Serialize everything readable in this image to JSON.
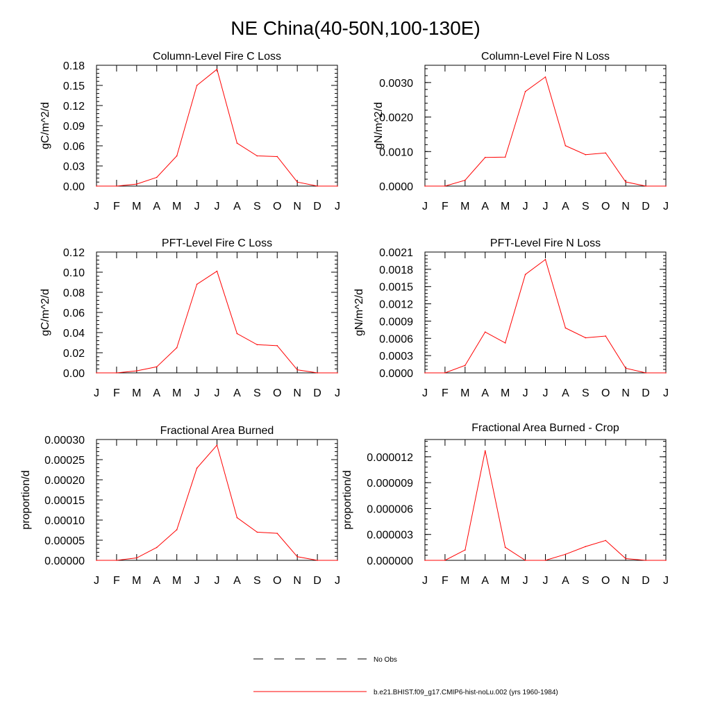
{
  "figure": {
    "title": "NE China(40-50N,100-130E)",
    "legend": [
      {
        "label": "No Obs",
        "style": "dashed",
        "color": "#000000"
      },
      {
        "label": "b.e21.BHIST.f09_g17.CMIP6-hist-noLu.002 (yrs 1960-1984)",
        "style": "solid",
        "color": "#ff0000"
      }
    ]
  },
  "chart_data": [
    {
      "type": "line",
      "title": "Column-Level Fire C Loss",
      "ylabel": "gC/m^2/d",
      "xlabel": "",
      "x_ticks": [
        "J",
        "F",
        "M",
        "A",
        "M",
        "J",
        "J",
        "A",
        "S",
        "O",
        "N",
        "D",
        "J"
      ],
      "ylim": [
        0,
        0.18
      ],
      "y_ticks": [
        "0.00",
        "0.03",
        "0.06",
        "0.09",
        "0.12",
        "0.15",
        "0.18"
      ],
      "series": [
        {
          "color": "#ff0000",
          "values": [
            0.0,
            0.0,
            0.003,
            0.013,
            0.045,
            0.15,
            0.174,
            0.064,
            0.045,
            0.044,
            0.006,
            0.0,
            0.0
          ]
        }
      ]
    },
    {
      "type": "line",
      "title": "Column-Level Fire N Loss",
      "ylabel": "gN/m^2/d",
      "xlabel": "",
      "x_ticks": [
        "J",
        "F",
        "M",
        "A",
        "M",
        "J",
        "J",
        "A",
        "S",
        "O",
        "N",
        "D",
        "J"
      ],
      "ylim": [
        0,
        0.0035
      ],
      "y_ticks": [
        "0.0000",
        "0.0010",
        "0.0020",
        "0.0030"
      ],
      "series": [
        {
          "color": "#ff0000",
          "values": [
            0.0,
            0.0,
            0.00017,
            0.00083,
            0.00084,
            0.00274,
            0.00316,
            0.00117,
            0.00091,
            0.00096,
            0.00012,
            0.0,
            0.0
          ]
        }
      ]
    },
    {
      "type": "line",
      "title": "PFT-Level Fire C Loss",
      "ylabel": "gC/m^2/d",
      "xlabel": "",
      "x_ticks": [
        "J",
        "F",
        "M",
        "A",
        "M",
        "J",
        "J",
        "A",
        "S",
        "O",
        "N",
        "D",
        "J"
      ],
      "ylim": [
        0,
        0.12
      ],
      "y_ticks": [
        "0.00",
        "0.02",
        "0.04",
        "0.06",
        "0.08",
        "0.10",
        "0.12"
      ],
      "series": [
        {
          "color": "#ff0000",
          "values": [
            0.0,
            0.0,
            0.002,
            0.006,
            0.025,
            0.088,
            0.101,
            0.039,
            0.028,
            0.027,
            0.003,
            0.0,
            0.0
          ]
        }
      ]
    },
    {
      "type": "line",
      "title": "PFT-Level Fire N Loss",
      "ylabel": "gN/m^2/d",
      "xlabel": "",
      "x_ticks": [
        "J",
        "F",
        "M",
        "A",
        "M",
        "J",
        "J",
        "A",
        "S",
        "O",
        "N",
        "D",
        "J"
      ],
      "ylim": [
        0,
        0.0021
      ],
      "y_ticks": [
        "0.0000",
        "0.0003",
        "0.0006",
        "0.0009",
        "0.0012",
        "0.0015",
        "0.0018",
        "0.0021"
      ],
      "series": [
        {
          "color": "#ff0000",
          "values": [
            0.0,
            0.0,
            0.00013,
            0.00071,
            0.00052,
            0.00171,
            0.00197,
            0.00078,
            0.00061,
            0.00064,
            8e-05,
            0.0,
            0.0
          ]
        }
      ]
    },
    {
      "type": "line",
      "title": "Fractional Area Burned",
      "ylabel": "proportion/d",
      "xlabel": "",
      "x_ticks": [
        "J",
        "F",
        "M",
        "A",
        "M",
        "J",
        "J",
        "A",
        "S",
        "O",
        "N",
        "D",
        "J"
      ],
      "ylim": [
        0,
        0.0003
      ],
      "y_ticks": [
        "0.00000",
        "0.00005",
        "0.00010",
        "0.00015",
        "0.00020",
        "0.00025",
        "0.00030"
      ],
      "series": [
        {
          "color": "#ff0000",
          "values": [
            0.0,
            0.0,
            6e-06,
            3.2e-05,
            7.6e-05,
            0.000229,
            0.000286,
            0.000106,
            7e-05,
            6.7e-05,
            9e-06,
            0.0,
            0.0
          ]
        }
      ]
    },
    {
      "type": "line",
      "title": "Fractional Area Burned - Crop",
      "ylabel": "proportion/d",
      "xlabel": "",
      "x_ticks": [
        "J",
        "F",
        "M",
        "A",
        "M",
        "J",
        "J",
        "A",
        "S",
        "O",
        "N",
        "D",
        "J"
      ],
      "ylim": [
        0,
        1.4e-05
      ],
      "y_ticks": [
        "0.000000",
        "0.000003",
        "0.000006",
        "0.000009",
        "0.000012"
      ],
      "series": [
        {
          "color": "#ff0000",
          "values": [
            0.0,
            0.0,
            1.2e-06,
            1.27e-05,
            1.5e-06,
            0.0,
            0.0,
            7e-07,
            1.6e-06,
            2.3e-06,
            2e-07,
            0.0,
            0.0
          ]
        }
      ]
    }
  ]
}
